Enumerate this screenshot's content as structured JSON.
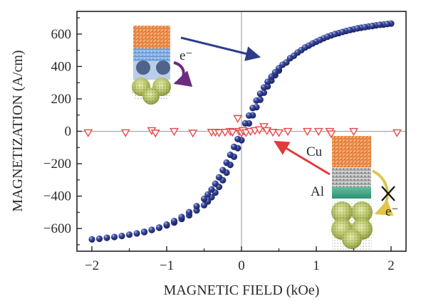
{
  "chart_data": {
    "type": "scatter",
    "xlabel": "MAGNETIC FIELD (kOe)",
    "ylabel": "MAGNETIZATION (A/cm)",
    "xlim": [
      -2.2,
      2.2
    ],
    "ylim": [
      -740,
      740
    ],
    "xticks": [
      -2,
      -1,
      0,
      1,
      2
    ],
    "xtick_labels": [
      "−2",
      "−1",
      "0",
      "1",
      "2"
    ],
    "yticks": [
      -600,
      -400,
      -200,
      0,
      200,
      400,
      600
    ],
    "ytick_labels": [
      "−600",
      "−400",
      "−200",
      "0",
      "200",
      "400",
      "600"
    ],
    "grid": false,
    "zero_lines": true,
    "series": [
      {
        "marker": "sphere",
        "color": "#2d3c8c",
        "points": [
          [
            -2.0,
            -667
          ],
          [
            -1.9,
            -663
          ],
          [
            -1.8,
            -657
          ],
          [
            -1.7,
            -652
          ],
          [
            -1.6,
            -646
          ],
          [
            -1.5,
            -638
          ],
          [
            -1.4,
            -630
          ],
          [
            -1.3,
            -620
          ],
          [
            -1.2,
            -608
          ],
          [
            -1.1,
            -595
          ],
          [
            -1.0,
            -581
          ],
          [
            -0.9,
            -563
          ],
          [
            -0.8,
            -541
          ],
          [
            -0.7,
            -518
          ],
          [
            -0.6,
            -488
          ],
          [
            -0.5,
            -456
          ],
          [
            -0.45,
            -433
          ],
          [
            -0.4,
            -407
          ],
          [
            -0.35,
            -378
          ],
          [
            -0.3,
            -343
          ],
          [
            -0.25,
            -302
          ],
          [
            -0.2,
            -255
          ],
          [
            -0.15,
            -207
          ],
          [
            -0.1,
            -157
          ],
          [
            -0.05,
            -104
          ],
          [
            0.0,
            -55
          ],
          [
            0.05,
            -2
          ],
          [
            0.1,
            49
          ],
          [
            0.15,
            99
          ],
          [
            0.2,
            149
          ],
          [
            0.25,
            195
          ],
          [
            0.3,
            238
          ],
          [
            0.35,
            277
          ],
          [
            0.4,
            313
          ],
          [
            0.45,
            346
          ],
          [
            0.5,
            375
          ],
          [
            0.6,
            425
          ],
          [
            0.7,
            466
          ],
          [
            0.8,
            501
          ],
          [
            0.9,
            529
          ],
          [
            1.0,
            553
          ],
          [
            1.1,
            574
          ],
          [
            1.2,
            592
          ],
          [
            1.3,
            606
          ],
          [
            1.4,
            619
          ],
          [
            1.5,
            630
          ],
          [
            1.6,
            639
          ],
          [
            1.7,
            647
          ],
          [
            1.8,
            654
          ],
          [
            1.9,
            659
          ],
          [
            2.0,
            665
          ],
          [
            1.95,
            662
          ],
          [
            1.85,
            657
          ],
          [
            1.75,
            650
          ],
          [
            1.65,
            643
          ],
          [
            1.55,
            635
          ],
          [
            1.45,
            625
          ],
          [
            1.35,
            613
          ],
          [
            1.25,
            600
          ],
          [
            1.15,
            584
          ],
          [
            1.05,
            564
          ],
          [
            0.95,
            542
          ],
          [
            0.85,
            517
          ],
          [
            0.75,
            486
          ],
          [
            0.65,
            451
          ],
          [
            0.55,
            411
          ],
          [
            0.5,
            389
          ],
          [
            0.45,
            364
          ],
          [
            0.4,
            337
          ],
          [
            0.35,
            306
          ],
          [
            0.3,
            271
          ],
          [
            0.25,
            232
          ],
          [
            0.2,
            190
          ],
          [
            0.15,
            144
          ],
          [
            0.1,
            97
          ],
          [
            0.05,
            49
          ],
          [
            0.0,
            0
          ],
          [
            -0.05,
            -48
          ],
          [
            -0.1,
            -96
          ],
          [
            -0.15,
            -145
          ],
          [
            -0.2,
            -193
          ],
          [
            -0.25,
            -240
          ],
          [
            -0.3,
            -284
          ],
          [
            -0.35,
            -324
          ],
          [
            -0.4,
            -359
          ],
          [
            -0.45,
            -390
          ],
          [
            -0.5,
            -417
          ],
          [
            -0.6,
            -462
          ],
          [
            -0.7,
            -499
          ],
          [
            -0.8,
            -529
          ],
          [
            -0.9,
            -554
          ],
          [
            -1.0,
            -576
          ],
          [
            -1.1,
            -594
          ],
          [
            -1.2,
            -609
          ],
          [
            -1.3,
            -622
          ]
        ]
      },
      {
        "marker": "open-triangle-down",
        "color": "#e84848",
        "points": [
          [
            -2.05,
            -8
          ],
          [
            -1.55,
            -8
          ],
          [
            -1.2,
            5
          ],
          [
            -1.15,
            -10
          ],
          [
            -0.9,
            0
          ],
          [
            -0.65,
            -10
          ],
          [
            -0.4,
            -5
          ],
          [
            -0.35,
            -5
          ],
          [
            -0.3,
            -8
          ],
          [
            -0.22,
            -5
          ],
          [
            -0.15,
            0
          ],
          [
            -0.12,
            -5
          ],
          [
            -0.05,
            80
          ],
          [
            -0.03,
            0
          ],
          [
            0.0,
            -10
          ],
          [
            0.02,
            5
          ],
          [
            0.06,
            -8
          ],
          [
            0.12,
            0
          ],
          [
            0.18,
            5
          ],
          [
            0.24,
            10
          ],
          [
            0.3,
            30
          ],
          [
            0.34,
            5
          ],
          [
            0.42,
            -5
          ],
          [
            0.5,
            -8
          ],
          [
            0.62,
            0
          ],
          [
            0.88,
            0
          ],
          [
            1.03,
            0
          ],
          [
            1.18,
            0
          ],
          [
            1.2,
            -15
          ],
          [
            1.5,
            0
          ],
          [
            2.08,
            -8
          ]
        ]
      }
    ],
    "annotations": [
      {
        "text": "e⁻",
        "inset": "top-left"
      },
      {
        "text": "Cu",
        "inset": "bottom-right"
      },
      {
        "text": "Al",
        "inset": "bottom-right"
      },
      {
        "text": "e⁻",
        "inset": "bottom-right"
      }
    ]
  }
}
